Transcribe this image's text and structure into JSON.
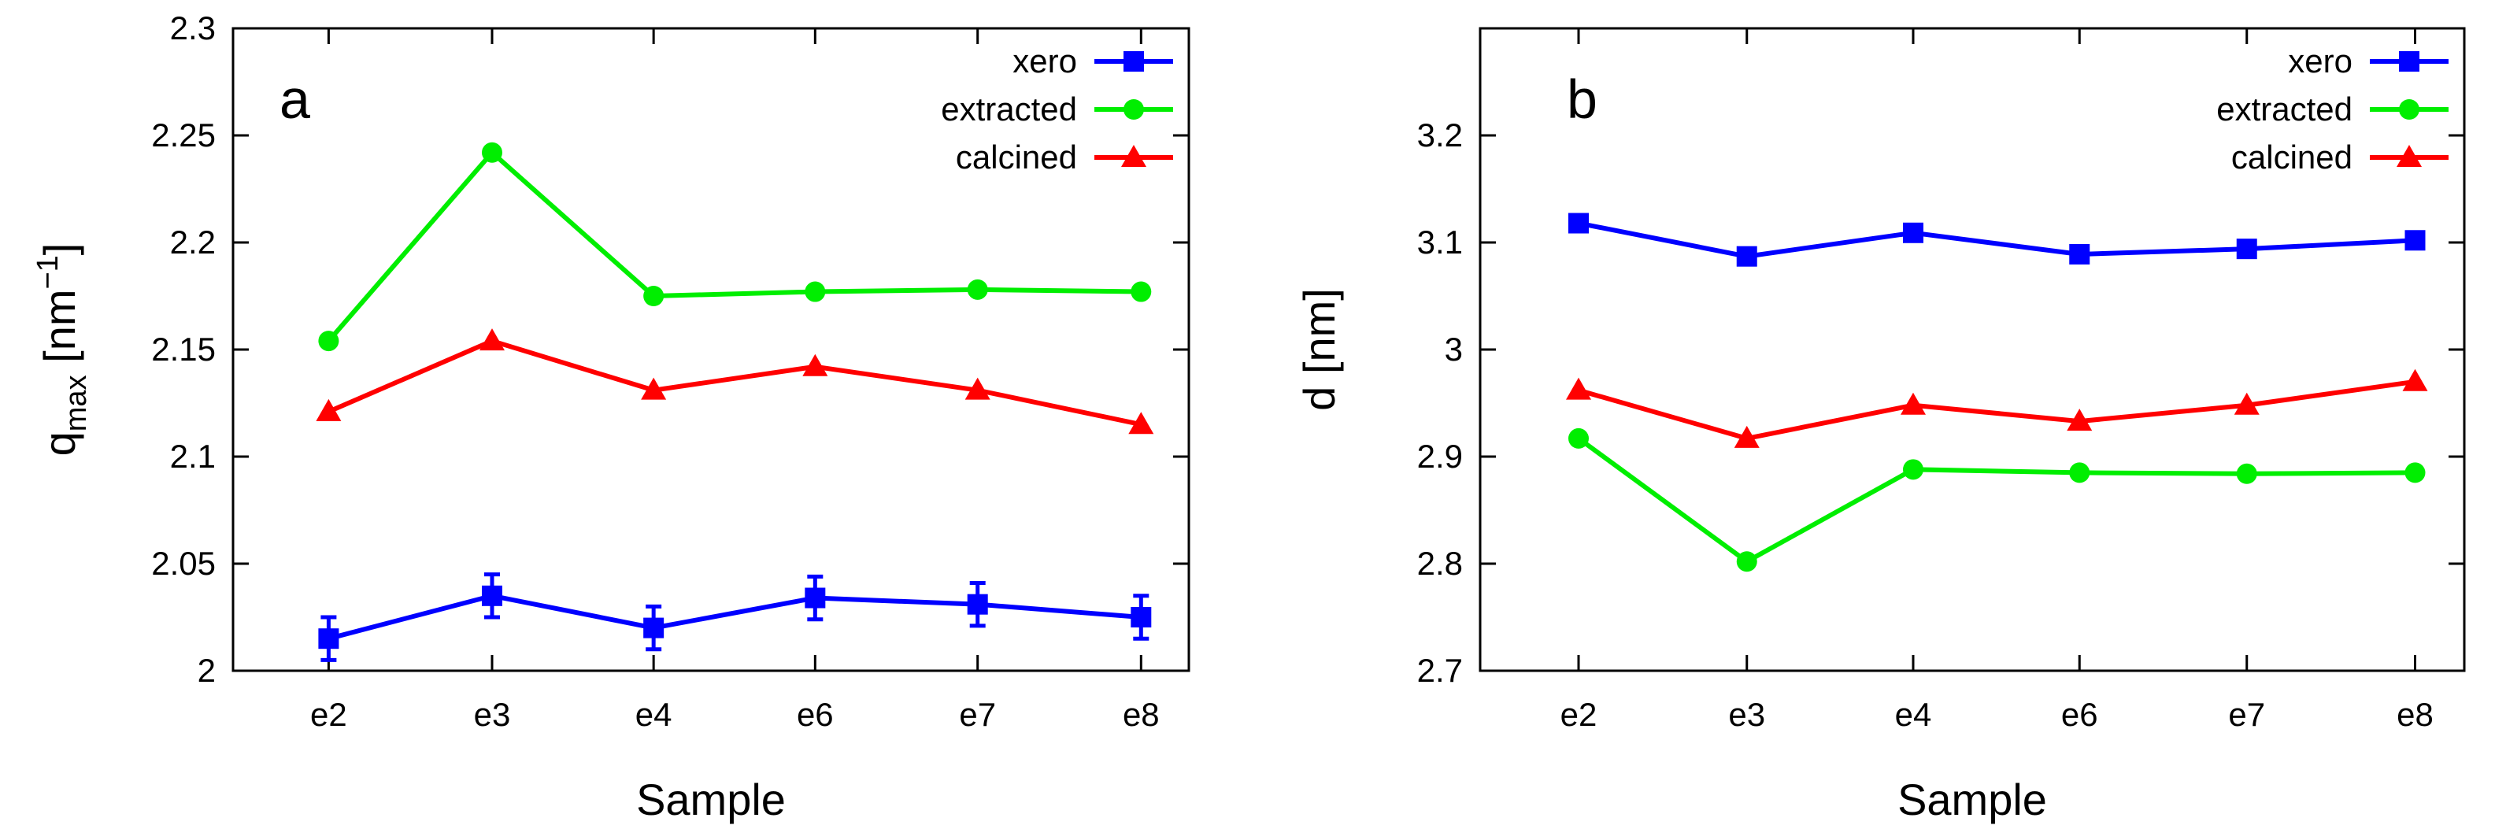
{
  "chart_data": [
    {
      "type": "line",
      "panel_label": "a",
      "categories": [
        "e2",
        "e3",
        "e4",
        "e6",
        "e7",
        "e8"
      ],
      "xlabel": "Sample",
      "ylabel_main": "q",
      "ylabel_sub": "max",
      "ylabel_unit_open": " [nm",
      "ylabel_unit_sup": "−1",
      "ylabel_unit_close": "]",
      "ylim": [
        2.0,
        2.3
      ],
      "yticks": [
        2,
        2.05,
        2.1,
        2.15,
        2.2,
        2.25,
        2.3
      ],
      "ytick_labels": [
        "2",
        "2.05",
        "2.1",
        "2.15",
        "2.2",
        "2.25",
        "2.3"
      ],
      "legend_position": "top-right",
      "series": [
        {
          "name": "xero",
          "color": "#0000ff",
          "marker": "square",
          "values": [
            2.015,
            2.035,
            2.02,
            2.034,
            2.031,
            2.025
          ],
          "errors": [
            0.01,
            0.01,
            0.01,
            0.01,
            0.01,
            0.01
          ]
        },
        {
          "name": "extracted",
          "color": "#00ee00",
          "marker": "circle",
          "values": [
            2.154,
            2.242,
            2.175,
            2.177,
            2.178,
            2.177
          ]
        },
        {
          "name": "calcined",
          "color": "#ff0000",
          "marker": "triangle",
          "values": [
            2.121,
            2.154,
            2.131,
            2.142,
            2.131,
            2.115
          ]
        }
      ]
    },
    {
      "type": "line",
      "panel_label": "b",
      "categories": [
        "e2",
        "e3",
        "e4",
        "e6",
        "e7",
        "e8"
      ],
      "xlabel": "Sample",
      "ylabel": "d [nm]",
      "ylim": [
        2.7,
        3.3
      ],
      "yticks": [
        2.7,
        2.8,
        2.9,
        3.0,
        3.1,
        3.2
      ],
      "ytick_labels": [
        "2.7",
        "2.8",
        "2.9",
        "3",
        "3.1",
        "3.2"
      ],
      "legend_position": "top-right",
      "series": [
        {
          "name": "xero",
          "color": "#0000ff",
          "marker": "square",
          "values": [
            3.118,
            3.087,
            3.109,
            3.089,
            3.094,
            3.102
          ]
        },
        {
          "name": "extracted",
          "color": "#00ee00",
          "marker": "circle",
          "values": [
            2.917,
            2.802,
            2.888,
            2.885,
            2.884,
            2.885
          ]
        },
        {
          "name": "calcined",
          "color": "#ff0000",
          "marker": "triangle",
          "values": [
            2.962,
            2.917,
            2.948,
            2.933,
            2.948,
            2.97
          ]
        }
      ]
    }
  ]
}
